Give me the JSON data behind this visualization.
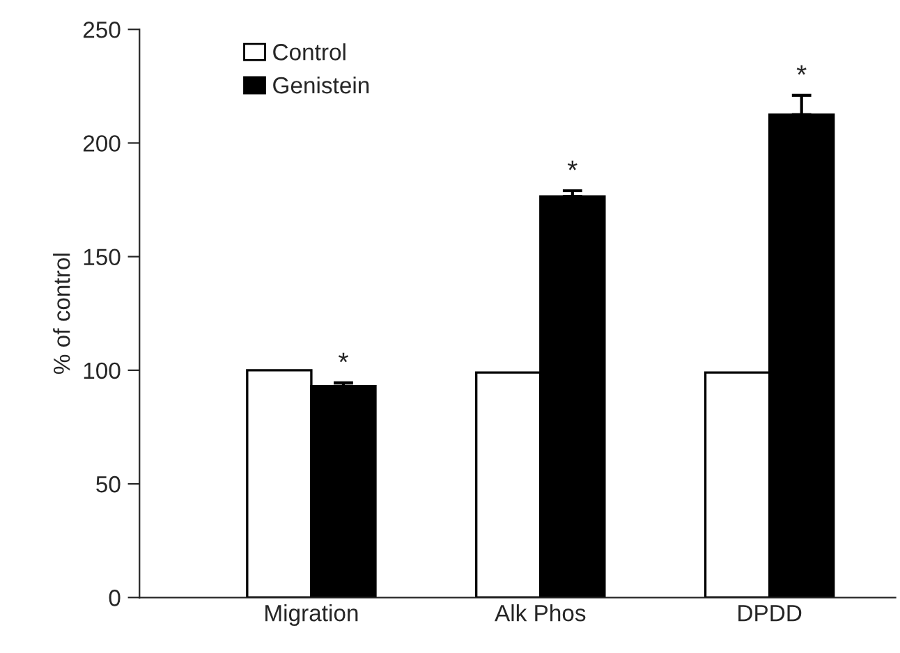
{
  "chart_data": {
    "type": "bar",
    "ylabel": "% of control",
    "categories": [
      "Migration",
      "Alk Phos",
      "DPDD"
    ],
    "series": [
      {
        "name": "Control",
        "color": "#ffffff",
        "values": [
          100,
          99,
          99
        ]
      },
      {
        "name": "Genistein",
        "color": "#000000",
        "values": [
          93,
          176.5,
          212.5
        ],
        "errors": [
          [
            93,
            94.5
          ],
          [
            176.5,
            179
          ],
          [
            212.5,
            221
          ]
        ]
      }
    ],
    "ylim": [
      0,
      250
    ],
    "yticks": [
      0,
      50,
      100,
      150,
      200,
      250
    ],
    "grid": false,
    "legend": "top left",
    "annotations": [
      "*",
      "*",
      "*"
    ]
  }
}
